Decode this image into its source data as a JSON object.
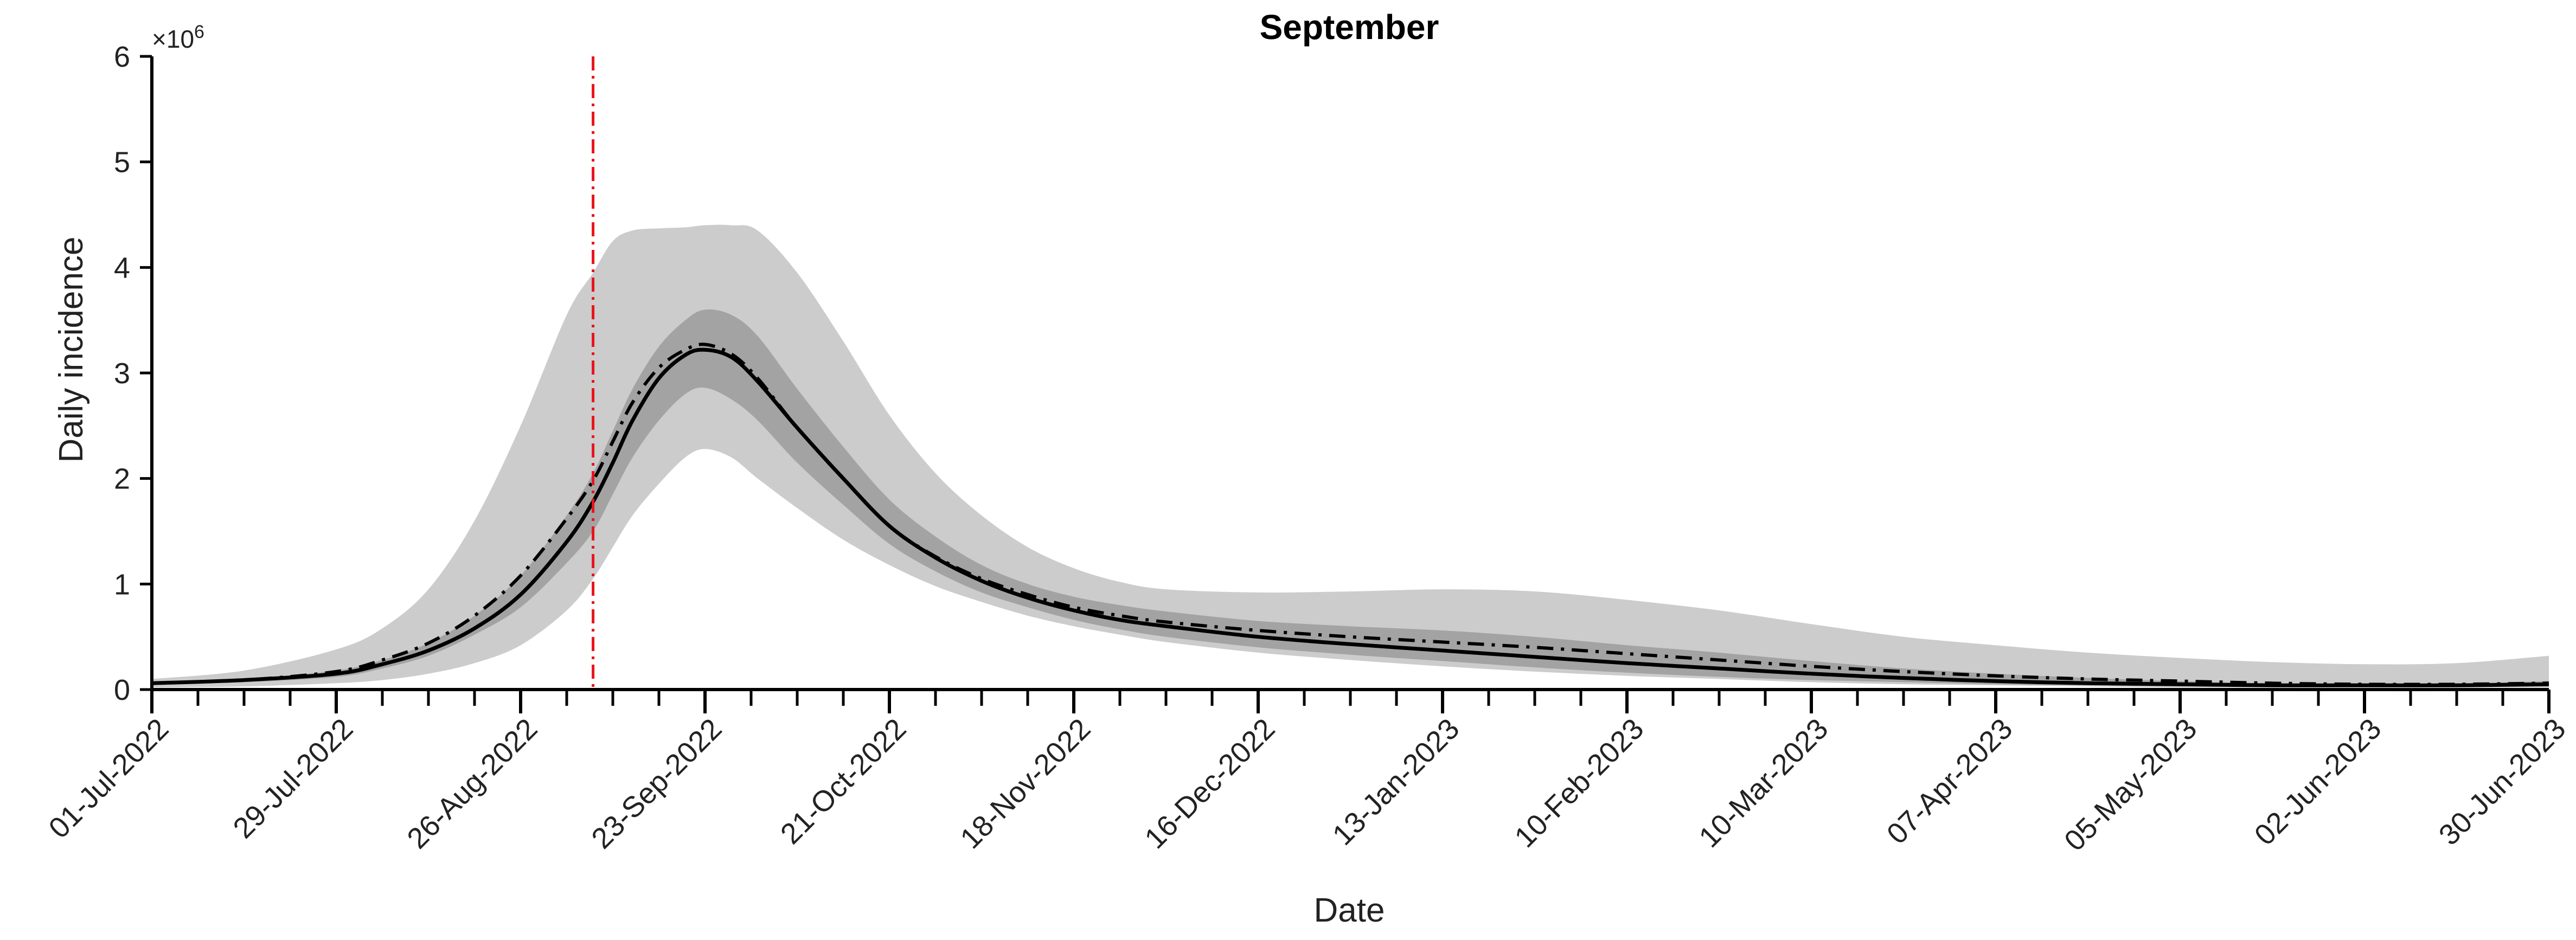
{
  "chart_data": {
    "type": "line",
    "title": "September",
    "xlabel": "Date",
    "ylabel": "Daily incidence",
    "y_multiplier_label": "×10⁶",
    "y_multiplier_base": "×10",
    "y_multiplier_exp": "6",
    "xlim": [
      "2022-07-01",
      "2023-06-30"
    ],
    "ylim": [
      0,
      6
    ],
    "y_ticks": [
      0,
      1,
      2,
      3,
      4,
      5,
      6
    ],
    "x_ticks": [
      {
        "date": "2022-07-01",
        "label": "01-Jul-2022"
      },
      {
        "date": "2022-07-29",
        "label": "29-Jul-2022"
      },
      {
        "date": "2022-08-26",
        "label": "26-Aug-2022"
      },
      {
        "date": "2022-09-23",
        "label": "23-Sep-2022"
      },
      {
        "date": "2022-10-21",
        "label": "21-Oct-2022"
      },
      {
        "date": "2022-11-18",
        "label": "18-Nov-2022"
      },
      {
        "date": "2022-12-16",
        "label": "16-Dec-2022"
      },
      {
        "date": "2023-01-13",
        "label": "13-Jan-2023"
      },
      {
        "date": "2023-02-10",
        "label": "10-Feb-2023"
      },
      {
        "date": "2023-03-10",
        "label": "10-Mar-2023"
      },
      {
        "date": "2023-04-07",
        "label": "07-Apr-2023"
      },
      {
        "date": "2023-05-05",
        "label": "05-May-2023"
      },
      {
        "date": "2023-06-02",
        "label": "02-Jun-2023"
      },
      {
        "date": "2023-06-30",
        "label": "30-Jun-2023"
      }
    ],
    "minor_tick_interval_days": 7,
    "vertical_line": {
      "date": "2022-09-06",
      "color": "#e8141b",
      "style": "dash-dot"
    },
    "colors": {
      "outer_band": "#cccccc",
      "inner_band": "#a3a3a3",
      "median_line": "#000000",
      "dashdot_line": "#000000",
      "axis": "#000000"
    },
    "grid": false,
    "series": [
      {
        "style": "outer-band",
        "x": [
          "2022-07-01",
          "2022-07-15",
          "2022-07-29",
          "2022-08-05",
          "2022-08-12",
          "2022-08-19",
          "2022-08-26",
          "2022-09-02",
          "2022-09-06",
          "2022-09-09",
          "2022-09-12",
          "2022-09-16",
          "2022-09-20",
          "2022-09-23",
          "2022-09-27",
          "2022-10-01",
          "2022-10-07",
          "2022-10-14",
          "2022-10-21",
          "2022-10-28",
          "2022-11-04",
          "2022-11-11",
          "2022-11-18",
          "2022-11-25",
          "2022-12-02",
          "2022-12-16",
          "2022-12-30",
          "2023-01-13",
          "2023-01-27",
          "2023-02-10",
          "2023-02-24",
          "2023-03-10",
          "2023-03-24",
          "2023-04-07",
          "2023-04-21",
          "2023-05-05",
          "2023-05-19",
          "2023-06-02",
          "2023-06-16",
          "2023-06-30"
        ],
        "lower": [
          0.02,
          0.03,
          0.06,
          0.09,
          0.15,
          0.25,
          0.42,
          0.75,
          1.05,
          1.35,
          1.65,
          1.95,
          2.2,
          2.28,
          2.2,
          2.0,
          1.72,
          1.42,
          1.18,
          0.98,
          0.83,
          0.7,
          0.6,
          0.52,
          0.45,
          0.35,
          0.28,
          0.22,
          0.17,
          0.13,
          0.1,
          0.07,
          0.05,
          0.04,
          0.03,
          0.02,
          0.02,
          0.02,
          0.02,
          0.02
        ],
        "upper": [
          0.1,
          0.18,
          0.38,
          0.58,
          0.95,
          1.6,
          2.5,
          3.55,
          3.95,
          4.25,
          4.35,
          4.37,
          4.38,
          4.4,
          4.4,
          4.35,
          3.95,
          3.3,
          2.6,
          2.05,
          1.65,
          1.35,
          1.15,
          1.02,
          0.95,
          0.92,
          0.93,
          0.95,
          0.93,
          0.85,
          0.75,
          0.62,
          0.5,
          0.42,
          0.35,
          0.3,
          0.26,
          0.24,
          0.25,
          0.32
        ]
      },
      {
        "style": "inner-band",
        "x": [
          "2022-07-01",
          "2022-07-15",
          "2022-07-29",
          "2022-08-05",
          "2022-08-12",
          "2022-08-19",
          "2022-08-26",
          "2022-09-02",
          "2022-09-06",
          "2022-09-09",
          "2022-09-12",
          "2022-09-16",
          "2022-09-20",
          "2022-09-23",
          "2022-09-27",
          "2022-10-01",
          "2022-10-07",
          "2022-10-14",
          "2022-10-21",
          "2022-10-28",
          "2022-11-04",
          "2022-11-11",
          "2022-11-18",
          "2022-11-25",
          "2022-12-02",
          "2022-12-16",
          "2022-12-30",
          "2023-01-13",
          "2023-01-27",
          "2023-02-10",
          "2023-02-24",
          "2023-03-10",
          "2023-03-24",
          "2023-04-07",
          "2023-04-21",
          "2023-05-05",
          "2023-05-19",
          "2023-06-02",
          "2023-06-16",
          "2023-06-30"
        ],
        "lower": [
          0.05,
          0.07,
          0.12,
          0.2,
          0.32,
          0.52,
          0.78,
          1.2,
          1.5,
          1.85,
          2.2,
          2.55,
          2.8,
          2.86,
          2.75,
          2.55,
          2.15,
          1.75,
          1.38,
          1.12,
          0.92,
          0.78,
          0.66,
          0.57,
          0.5,
          0.4,
          0.33,
          0.27,
          0.21,
          0.16,
          0.12,
          0.09,
          0.07,
          0.05,
          0.04,
          0.03,
          0.03,
          0.03,
          0.03,
          0.03
        ],
        "upper": [
          0.07,
          0.1,
          0.18,
          0.28,
          0.44,
          0.7,
          1.08,
          1.65,
          2.05,
          2.45,
          2.85,
          3.25,
          3.5,
          3.6,
          3.55,
          3.35,
          2.85,
          2.3,
          1.8,
          1.45,
          1.18,
          1.0,
          0.88,
          0.8,
          0.74,
          0.65,
          0.6,
          0.56,
          0.5,
          0.42,
          0.35,
          0.27,
          0.2,
          0.15,
          0.11,
          0.08,
          0.06,
          0.06,
          0.06,
          0.08
        ]
      },
      {
        "style": "solid",
        "x": [
          "2022-07-01",
          "2022-07-15",
          "2022-07-29",
          "2022-08-05",
          "2022-08-12",
          "2022-08-19",
          "2022-08-26",
          "2022-09-02",
          "2022-09-06",
          "2022-09-09",
          "2022-09-12",
          "2022-09-16",
          "2022-09-20",
          "2022-09-23",
          "2022-09-27",
          "2022-10-01",
          "2022-10-07",
          "2022-10-14",
          "2022-10-21",
          "2022-10-28",
          "2022-11-04",
          "2022-11-11",
          "2022-11-18",
          "2022-11-25",
          "2022-12-02",
          "2022-12-16",
          "2022-12-30",
          "2023-01-13",
          "2023-01-27",
          "2023-02-10",
          "2023-02-24",
          "2023-03-10",
          "2023-03-24",
          "2023-04-07",
          "2023-04-21",
          "2023-05-05",
          "2023-05-19",
          "2023-06-02",
          "2023-06-16",
          "2023-06-30"
        ],
        "values": [
          0.06,
          0.09,
          0.15,
          0.24,
          0.37,
          0.58,
          0.9,
          1.4,
          1.78,
          2.15,
          2.55,
          2.95,
          3.17,
          3.22,
          3.15,
          2.92,
          2.48,
          2.0,
          1.55,
          1.25,
          1.03,
          0.87,
          0.75,
          0.66,
          0.6,
          0.5,
          0.43,
          0.37,
          0.31,
          0.25,
          0.2,
          0.15,
          0.11,
          0.08,
          0.06,
          0.05,
          0.04,
          0.04,
          0.04,
          0.05
        ]
      },
      {
        "style": "dash-dot",
        "x": [
          "2022-07-01",
          "2022-07-15",
          "2022-07-29",
          "2022-08-05",
          "2022-08-12",
          "2022-08-19",
          "2022-08-26",
          "2022-09-02",
          "2022-09-06",
          "2022-09-09",
          "2022-09-12",
          "2022-09-16",
          "2022-09-20",
          "2022-09-23",
          "2022-09-27",
          "2022-10-01",
          "2022-10-07",
          "2022-10-14",
          "2022-10-21",
          "2022-10-28",
          "2022-11-04",
          "2022-11-11",
          "2022-11-18",
          "2022-11-25",
          "2022-12-02",
          "2022-12-16",
          "2022-12-30",
          "2023-01-13",
          "2023-01-27",
          "2023-02-10",
          "2023-02-24",
          "2023-03-10",
          "2023-03-24",
          "2023-04-07",
          "2023-04-21",
          "2023-05-05",
          "2023-05-19",
          "2023-06-02",
          "2023-06-16",
          "2023-06-30"
        ],
        "values": [
          0.06,
          0.09,
          0.17,
          0.28,
          0.44,
          0.7,
          1.08,
          1.62,
          1.98,
          2.35,
          2.72,
          3.05,
          3.22,
          3.27,
          3.18,
          2.95,
          2.48,
          2.0,
          1.55,
          1.26,
          1.05,
          0.9,
          0.78,
          0.7,
          0.64,
          0.56,
          0.5,
          0.45,
          0.4,
          0.34,
          0.28,
          0.22,
          0.17,
          0.13,
          0.1,
          0.08,
          0.06,
          0.05,
          0.05,
          0.06
        ]
      }
    ]
  }
}
